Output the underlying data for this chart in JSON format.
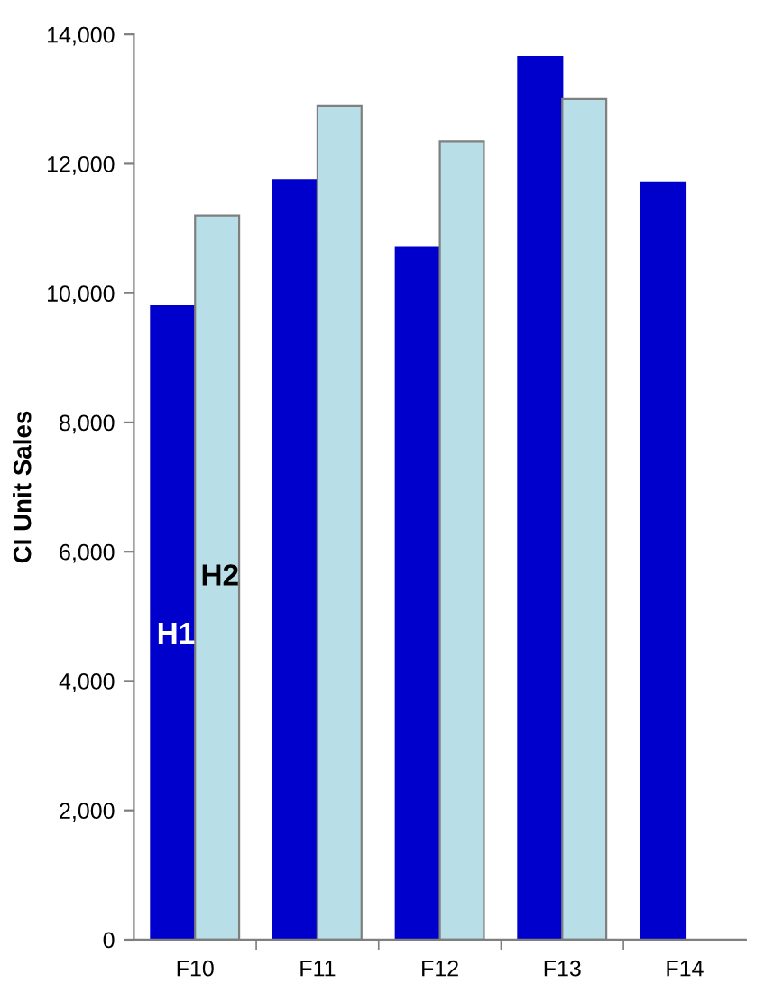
{
  "chart_data": {
    "type": "bar",
    "ylabel": "CI Unit Sales",
    "categories": [
      "F10",
      "F11",
      "F12",
      "F13",
      "F14"
    ],
    "series": [
      {
        "name": "H1",
        "color": "#0000cc",
        "values": [
          9800,
          11750,
          10700,
          13650,
          11700
        ]
      },
      {
        "name": "H2",
        "color": "#b8dfe8",
        "values": [
          11200,
          12900,
          12350,
          13000,
          null
        ]
      }
    ],
    "ylim": [
      0,
      14000
    ],
    "yticks": [
      {
        "value": 0,
        "label": "0"
      },
      {
        "value": 2000,
        "label": "2,000"
      },
      {
        "value": 4000,
        "label": "4,000"
      },
      {
        "value": 6000,
        "label": "6,000"
      },
      {
        "value": 8000,
        "label": "8,000"
      },
      {
        "value": 10000,
        "label": "10,000"
      },
      {
        "value": 12000,
        "label": "12,000"
      },
      {
        "value": 14000,
        "label": "14,000"
      }
    ],
    "grid": false,
    "legend": false
  }
}
